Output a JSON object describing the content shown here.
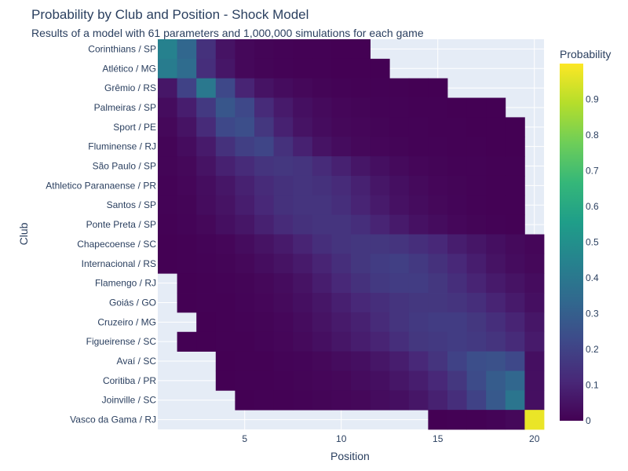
{
  "chart_data": {
    "type": "heatmap",
    "title": "Probability by Club and Position - Shock Model",
    "subtitle": "Results of a model with 61 parameters and 1,000,000 simulations for each game",
    "xlabel": "Position",
    "ylabel": "Club",
    "x": [
      1,
      2,
      3,
      4,
      5,
      6,
      7,
      8,
      9,
      10,
      11,
      12,
      13,
      14,
      15,
      16,
      17,
      18,
      19,
      20
    ],
    "x_ticks": [
      5,
      10,
      15,
      20
    ],
    "clubs": [
      "Corinthians / SP",
      "Atlético / MG",
      "Grêmio / RS",
      "Palmeiras / SP",
      "Sport / PE",
      "Fluminense / RJ",
      "São Paulo / SP",
      "Athletico Paranaense / PR",
      "Santos / SP",
      "Ponte Preta / SP",
      "Chapecoense / SC",
      "Internacional / RS",
      "Flamengo / RJ",
      "Goiás / GO",
      "Cruzeiro / MG",
      "Figueirense / SC",
      "Avaí / SC",
      "Coritiba / PR",
      "Joinville / SC",
      "Vasco da Gama / RJ"
    ],
    "z": [
      [
        0.44,
        0.33,
        0.14,
        0.05,
        0.02,
        0.01,
        0.005,
        0.003,
        0.002,
        0.001,
        0.001,
        null,
        null,
        null,
        null,
        null,
        null,
        null,
        null,
        null
      ],
      [
        0.42,
        0.35,
        0.13,
        0.06,
        0.02,
        0.01,
        0.005,
        0.003,
        0.002,
        0.001,
        0.001,
        0.001,
        null,
        null,
        null,
        null,
        null,
        null,
        null,
        null
      ],
      [
        0.06,
        0.2,
        0.4,
        0.22,
        0.1,
        0.05,
        0.03,
        0.02,
        0.01,
        0.006,
        0.004,
        0.003,
        0.002,
        0.001,
        0.001,
        null,
        null,
        null,
        null,
        null
      ],
      [
        0.03,
        0.08,
        0.17,
        0.27,
        0.22,
        0.12,
        0.07,
        0.04,
        0.025,
        0.015,
        0.01,
        0.007,
        0.005,
        0.003,
        0.002,
        0.001,
        0.001,
        0.001,
        null,
        null
      ],
      [
        0.02,
        0.05,
        0.12,
        0.22,
        0.24,
        0.16,
        0.09,
        0.05,
        0.03,
        0.02,
        0.015,
        0.01,
        0.007,
        0.005,
        0.003,
        0.002,
        0.001,
        0.001,
        0.001,
        null
      ],
      [
        0.01,
        0.03,
        0.07,
        0.14,
        0.19,
        0.21,
        0.14,
        0.09,
        0.05,
        0.03,
        0.02,
        0.015,
        0.01,
        0.007,
        0.005,
        0.003,
        0.002,
        0.001,
        0.001,
        null
      ],
      [
        0.01,
        0.02,
        0.05,
        0.09,
        0.12,
        0.15,
        0.16,
        0.15,
        0.12,
        0.09,
        0.06,
        0.04,
        0.025,
        0.015,
        0.01,
        0.007,
        0.005,
        0.003,
        0.002,
        null
      ],
      [
        0.005,
        0.015,
        0.035,
        0.06,
        0.09,
        0.12,
        0.14,
        0.15,
        0.14,
        0.12,
        0.09,
        0.06,
        0.04,
        0.025,
        0.015,
        0.01,
        0.006,
        0.004,
        0.002,
        null
      ],
      [
        0.005,
        0.01,
        0.03,
        0.05,
        0.08,
        0.11,
        0.14,
        0.15,
        0.15,
        0.13,
        0.1,
        0.07,
        0.045,
        0.03,
        0.02,
        0.012,
        0.007,
        0.004,
        0.002,
        null
      ],
      [
        0.003,
        0.008,
        0.02,
        0.04,
        0.06,
        0.09,
        0.12,
        0.14,
        0.15,
        0.15,
        0.13,
        0.1,
        0.07,
        0.045,
        0.03,
        0.018,
        0.01,
        0.006,
        0.003,
        null
      ],
      [
        0.001,
        0.003,
        0.008,
        0.015,
        0.03,
        0.05,
        0.07,
        0.1,
        0.13,
        0.15,
        0.16,
        0.16,
        0.15,
        0.13,
        0.11,
        0.08,
        0.06,
        0.04,
        0.025,
        0.015
      ],
      [
        0.001,
        0.002,
        0.005,
        0.01,
        0.02,
        0.035,
        0.05,
        0.07,
        0.1,
        0.13,
        0.16,
        0.18,
        0.19,
        0.17,
        0.14,
        0.11,
        0.08,
        0.05,
        0.03,
        0.02
      ],
      [
        null,
        0.001,
        0.002,
        0.005,
        0.01,
        0.02,
        0.03,
        0.05,
        0.08,
        0.11,
        0.14,
        0.17,
        0.18,
        0.18,
        0.16,
        0.13,
        0.1,
        0.07,
        0.05,
        0.03
      ],
      [
        null,
        0.001,
        0.002,
        0.004,
        0.008,
        0.015,
        0.025,
        0.04,
        0.06,
        0.085,
        0.11,
        0.13,
        0.15,
        0.16,
        0.16,
        0.15,
        0.13,
        0.1,
        0.07,
        0.04
      ],
      [
        null,
        null,
        0.001,
        0.002,
        0.005,
        0.01,
        0.018,
        0.03,
        0.05,
        0.07,
        0.09,
        0.12,
        0.15,
        0.17,
        0.18,
        0.18,
        0.16,
        0.13,
        0.1,
        0.06
      ],
      [
        null,
        0.001,
        0.001,
        0.002,
        0.004,
        0.008,
        0.015,
        0.025,
        0.04,
        0.06,
        0.08,
        0.1,
        0.13,
        0.16,
        0.17,
        0.18,
        0.17,
        0.15,
        0.12,
        0.07
      ],
      [
        null,
        null,
        null,
        0.001,
        0.002,
        0.004,
        0.008,
        0.012,
        0.02,
        0.03,
        0.04,
        0.06,
        0.08,
        0.11,
        0.15,
        0.2,
        0.24,
        0.25,
        0.22,
        0.04
      ],
      [
        null,
        null,
        null,
        0.001,
        0.002,
        0.003,
        0.006,
        0.01,
        0.015,
        0.02,
        0.03,
        0.04,
        0.06,
        0.08,
        0.11,
        0.16,
        0.23,
        0.29,
        0.33,
        0.04
      ],
      [
        null,
        null,
        null,
        null,
        0.001,
        0.002,
        0.004,
        0.006,
        0.01,
        0.015,
        0.02,
        0.03,
        0.04,
        0.06,
        0.09,
        0.13,
        0.2,
        0.28,
        0.39,
        0.04
      ],
      [
        null,
        null,
        null,
        null,
        null,
        null,
        null,
        null,
        null,
        null,
        null,
        null,
        null,
        null,
        0.001,
        0.002,
        0.004,
        0.008,
        0.02,
        0.97
      ]
    ],
    "colorscale": "Viridis",
    "zmin": 0,
    "zmax": 1,
    "colorbar": {
      "title": "Probability",
      "ticks": [
        0,
        0.1,
        0.2,
        0.3,
        0.4,
        0.5,
        0.6,
        0.7,
        0.8,
        0.9
      ]
    },
    "plot_background": "#e5ecf6"
  }
}
